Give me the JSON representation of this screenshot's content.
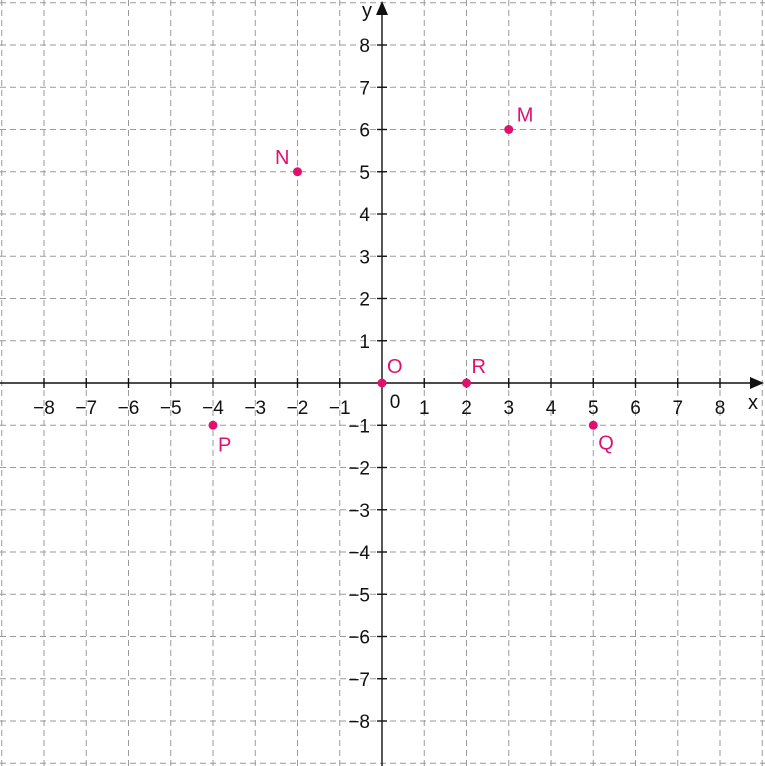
{
  "chart_data": {
    "type": "scatter",
    "xlabel": "x",
    "ylabel": "y",
    "xlim": [
      -9,
      9
    ],
    "ylim": [
      -9,
      9
    ],
    "x_ticks": [
      -8,
      -7,
      -6,
      -5,
      -4,
      -3,
      -2,
      -1,
      0,
      1,
      2,
      3,
      4,
      5,
      6,
      7,
      8
    ],
    "y_ticks": [
      -8,
      -7,
      -6,
      -5,
      -4,
      -3,
      -2,
      -1,
      1,
      2,
      3,
      4,
      5,
      6,
      7,
      8
    ],
    "tick_text": {
      "-8": "−8",
      "-7": "−7",
      "-6": "−6",
      "-5": "−5",
      "-4": "−4",
      "-3": "−3",
      "-2": "−2",
      "-1": "−1",
      "0": "0",
      "1": "1",
      "2": "2",
      "3": "3",
      "4": "4",
      "5": "5",
      "6": "6",
      "7": "7",
      "8": "8"
    },
    "grid": true,
    "point_color": "#e0106f",
    "points": [
      {
        "label": "M",
        "x": 3,
        "y": 6
      },
      {
        "label": "N",
        "x": -2,
        "y": 5
      },
      {
        "label": "O",
        "x": 0,
        "y": 0
      },
      {
        "label": "R",
        "x": 2,
        "y": 0
      },
      {
        "label": "P",
        "x": -4,
        "y": -1
      },
      {
        "label": "Q",
        "x": 5,
        "y": -1
      }
    ]
  }
}
